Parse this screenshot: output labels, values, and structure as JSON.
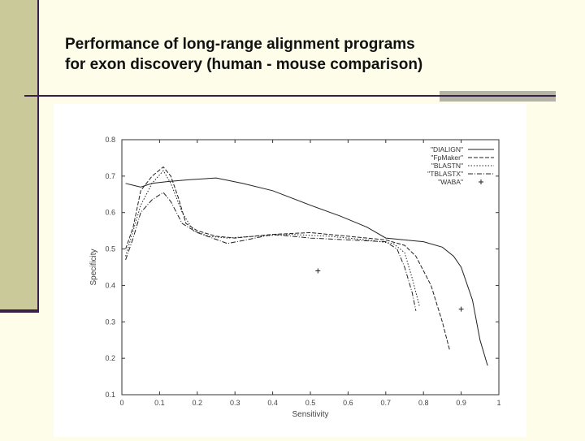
{
  "slide": {
    "title_line1": "Performance of long-range alignment programs",
    "title_line2": "for exon discovery (human - mouse comparison)"
  },
  "chart_data": {
    "type": "line",
    "title": "",
    "xlabel": "Sensitivity",
    "ylabel": "Specificity",
    "xlim": [
      0,
      1
    ],
    "ylim": [
      0.1,
      0.8
    ],
    "x_ticks": [
      "0",
      "0.1",
      "0.2",
      "0.3",
      "0.4",
      "0.5",
      "0.6",
      "0.7",
      "0.8",
      "0.9",
      "1"
    ],
    "y_ticks": [
      "0.1",
      "0.2",
      "0.3",
      "0.4",
      "0.5",
      "0.6",
      "0.7",
      "0.8"
    ],
    "grid": false,
    "legend_position": "top-right",
    "series": [
      {
        "name": "\"DIALIGN\"",
        "style": "solid",
        "points": [
          [
            0.01,
            0.68
          ],
          [
            0.03,
            0.675
          ],
          [
            0.05,
            0.67
          ],
          [
            0.08,
            0.68
          ],
          [
            0.12,
            0.685
          ],
          [
            0.18,
            0.69
          ],
          [
            0.25,
            0.695
          ],
          [
            0.32,
            0.68
          ],
          [
            0.4,
            0.66
          ],
          [
            0.5,
            0.62
          ],
          [
            0.58,
            0.59
          ],
          [
            0.65,
            0.56
          ],
          [
            0.7,
            0.53
          ],
          [
            0.75,
            0.525
          ],
          [
            0.8,
            0.52
          ],
          [
            0.85,
            0.505
          ],
          [
            0.88,
            0.48
          ],
          [
            0.9,
            0.45
          ],
          [
            0.93,
            0.36
          ],
          [
            0.95,
            0.25
          ],
          [
            0.97,
            0.18
          ]
        ]
      },
      {
        "name": "\"FpMaker\"",
        "style": "dashed",
        "points": [
          [
            0.01,
            0.5
          ],
          [
            0.03,
            0.56
          ],
          [
            0.05,
            0.66
          ],
          [
            0.08,
            0.7
          ],
          [
            0.11,
            0.725
          ],
          [
            0.13,
            0.7
          ],
          [
            0.15,
            0.64
          ],
          [
            0.17,
            0.57
          ],
          [
            0.2,
            0.55
          ],
          [
            0.25,
            0.535
          ],
          [
            0.3,
            0.53
          ],
          [
            0.4,
            0.54
          ],
          [
            0.5,
            0.545
          ],
          [
            0.6,
            0.535
          ],
          [
            0.7,
            0.525
          ],
          [
            0.75,
            0.51
          ],
          [
            0.78,
            0.48
          ],
          [
            0.82,
            0.4
          ],
          [
            0.85,
            0.3
          ],
          [
            0.87,
            0.22
          ]
        ]
      },
      {
        "name": "\"BLASTN\"",
        "style": "dotted",
        "points": [
          [
            0.01,
            0.48
          ],
          [
            0.03,
            0.55
          ],
          [
            0.05,
            0.62
          ],
          [
            0.08,
            0.68
          ],
          [
            0.11,
            0.715
          ],
          [
            0.13,
            0.68
          ],
          [
            0.16,
            0.6
          ],
          [
            0.19,
            0.55
          ],
          [
            0.23,
            0.535
          ],
          [
            0.28,
            0.53
          ],
          [
            0.35,
            0.535
          ],
          [
            0.45,
            0.54
          ],
          [
            0.55,
            0.535
          ],
          [
            0.65,
            0.525
          ],
          [
            0.72,
            0.515
          ],
          [
            0.75,
            0.49
          ],
          [
            0.77,
            0.42
          ],
          [
            0.79,
            0.34
          ]
        ]
      },
      {
        "name": "\"TBLASTX\"",
        "style": "dashdot",
        "points": [
          [
            0.01,
            0.47
          ],
          [
            0.03,
            0.53
          ],
          [
            0.05,
            0.6
          ],
          [
            0.08,
            0.635
          ],
          [
            0.11,
            0.655
          ],
          [
            0.13,
            0.63
          ],
          [
            0.16,
            0.57
          ],
          [
            0.2,
            0.545
          ],
          [
            0.24,
            0.53
          ],
          [
            0.28,
            0.515
          ],
          [
            0.33,
            0.525
          ],
          [
            0.4,
            0.54
          ],
          [
            0.5,
            0.53
          ],
          [
            0.6,
            0.525
          ],
          [
            0.7,
            0.52
          ],
          [
            0.73,
            0.5
          ],
          [
            0.75,
            0.45
          ],
          [
            0.77,
            0.38
          ],
          [
            0.78,
            0.33
          ]
        ]
      },
      {
        "name": "\"WABA\"",
        "style": "points",
        "points": [
          [
            0.52,
            0.44
          ],
          [
            0.9,
            0.335
          ]
        ]
      }
    ]
  }
}
